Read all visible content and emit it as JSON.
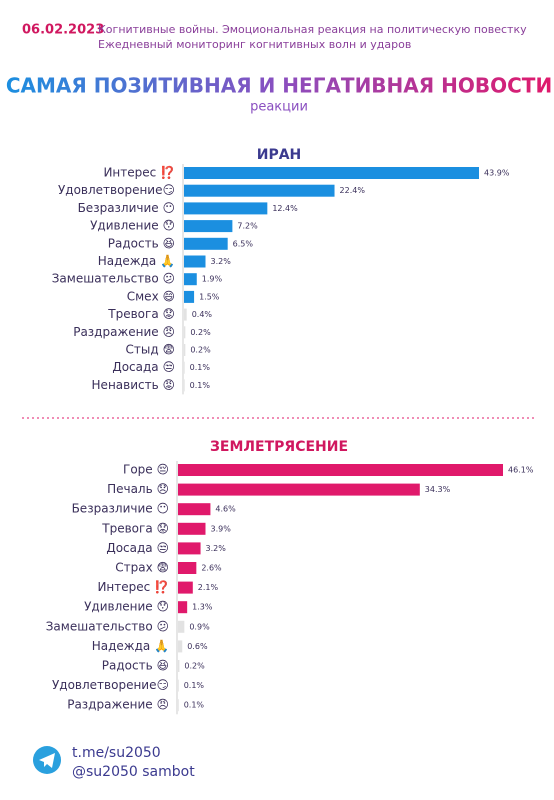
{
  "header": {
    "date": "06.02.2023",
    "line1": "Когнитивные войны. Эмоциональная реакция на политическую повестку",
    "line2": "Ежедневный мониторинг когнитивных волн и ударов"
  },
  "title": "САМАЯ ПОЗИТИВНАЯ И НЕГАТИВНАЯ НОВОСТИ",
  "subtitle": "реакции",
  "chart_data": [
    {
      "type": "bar",
      "orientation": "horizontal",
      "title": "ИРАН",
      "title_color": "#3b3a8f",
      "categories": [
        "Интерес ⁉️",
        "Удовлетворение😏",
        "Безразличие 😶",
        "Удивление 😯",
        "Радость 😆",
        "Надежда 🙏",
        "Замешательство 😕",
        "Смех 😄",
        "Тревога 😟",
        "Раздражение 😠",
        "Стыд 😨",
        "Досада 😒",
        "Ненависть 😡"
      ],
      "values": [
        43.9,
        22.4,
        12.4,
        7.2,
        6.5,
        3.2,
        1.9,
        1.5,
        0.4,
        0.2,
        0.2,
        0.1,
        0.1
      ],
      "value_labels": [
        "43.9%",
        "22.4%",
        "12.4%",
        "7.2%",
        "6.5%",
        "3.2%",
        "1.9%",
        "1.5%",
        "0.4%",
        "0.2%",
        "0.2%",
        "0.1%",
        "0.1%"
      ],
      "colors": [
        "#1b8fe0",
        "#1b8fe0",
        "#1b8fe0",
        "#1b8fe0",
        "#1b8fe0",
        "#1b8fe0",
        "#1b8fe0",
        "#1b8fe0",
        "#e2e2e2",
        "#e2e2e2",
        "#e2e2e2",
        "#e2e2e2",
        "#e2e2e2"
      ]
    },
    {
      "type": "bar",
      "orientation": "horizontal",
      "title": "ЗЕМЛЕТРЯСЕНИЕ",
      "title_color": "#d0175f",
      "categories": [
        "Горе 😔",
        "Печаль 😞",
        "Безразличие 😶",
        "Тревога 😟",
        "Досада 😒",
        "Страх 😨",
        "Интерес ⁉️",
        "Удивление 😯",
        "Замешательство 😕",
        "Надежда 🙏",
        "Радость 😆",
        "Удовлетворение😏",
        "Раздражение 😠"
      ],
      "values": [
        46.1,
        34.3,
        4.6,
        3.9,
        3.2,
        2.6,
        2.1,
        1.3,
        0.9,
        0.6,
        0.2,
        0.1,
        0.1
      ],
      "value_labels": [
        "46.1%",
        "34.3%",
        "4.6%",
        "3.9%",
        "3.2%",
        "2.6%",
        "2.1%",
        "1.3%",
        "0.9%",
        "0.6%",
        "0.2%",
        "0.1%",
        "0.1%"
      ],
      "colors": [
        "#e0196b",
        "#e0196b",
        "#e0196b",
        "#e0196b",
        "#e0196b",
        "#e0196b",
        "#e0196b",
        "#e0196b",
        "#e2e2e2",
        "#e2e2e2",
        "#e2e2e2",
        "#e2e2e2",
        "#e2e2e2"
      ]
    }
  ],
  "footer": {
    "link": "t.me/su2050",
    "bot": "@su2050 sambot"
  }
}
